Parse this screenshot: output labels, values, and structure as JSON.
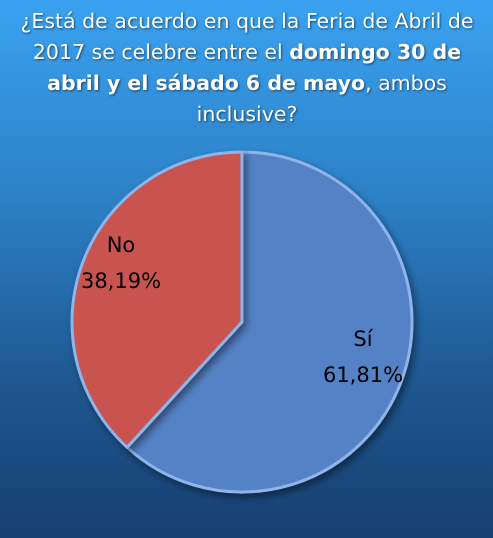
{
  "title": {
    "part1": "¿Está de acuerdo en que la Feria de Abril de 2017 se celebre entre el ",
    "bold1": "domingo 30 de abril y el sábado 6 de mayo",
    "part2": ", ambos inclusive?"
  },
  "chart_data": {
    "type": "pie",
    "title": "¿Está de acuerdo en que la Feria de Abril de 2017 se celebre entre el domingo 30 de abril y el sábado 6 de mayo, ambos inclusive?",
    "slices": [
      {
        "label": "Sí",
        "value": 61.81,
        "display": "61,81%",
        "color": "#5582c6"
      },
      {
        "label": "No",
        "value": 38.19,
        "display": "38,19%",
        "color": "#c85250"
      }
    ]
  }
}
